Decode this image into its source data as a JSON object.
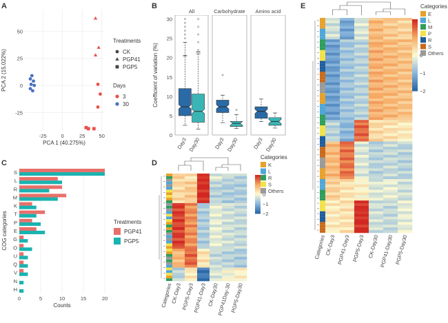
{
  "panels": {
    "A": "A",
    "B": "B",
    "C": "C",
    "D": "D",
    "E": "E"
  },
  "chart_data": [
    {
      "panel": "A",
      "type": "scatter",
      "xlabel": "PCA 1 (40.275%)",
      "ylabel": "PCA 2 (15.022%)",
      "xlim": [
        -48,
        52
      ],
      "ylim": [
        -42,
        70
      ],
      "xticks": [
        -25,
        0,
        25,
        50
      ],
      "yticks": [
        -25,
        0,
        25,
        50
      ],
      "grid": true,
      "legend_treatments_title": "Treatments",
      "legend_days_title": "Days",
      "treatments": [
        "CK",
        "PGP41",
        "PGP5"
      ],
      "days": [
        "3",
        "30"
      ],
      "colors": {
        "3": "#e8524a",
        "30": "#4a6fc0"
      },
      "points": [
        {
          "x": -39,
          "y": 9,
          "day": "30",
          "t": "CK"
        },
        {
          "x": -41,
          "y": 6,
          "day": "30",
          "t": "CK"
        },
        {
          "x": -37,
          "y": 4,
          "day": "30",
          "t": "CK"
        },
        {
          "x": -40,
          "y": 1,
          "day": "30",
          "t": "CK"
        },
        {
          "x": -36,
          "y": 0,
          "day": "30",
          "t": "CK"
        },
        {
          "x": -41,
          "y": -3,
          "day": "30",
          "t": "CK"
        },
        {
          "x": -38,
          "y": -5,
          "day": "30",
          "t": "CK"
        },
        {
          "x": 42,
          "y": 62,
          "day": "3",
          "t": "PGP41"
        },
        {
          "x": 46,
          "y": 35,
          "day": "3",
          "t": "PGP41"
        },
        {
          "x": 42,
          "y": 28,
          "day": "3",
          "t": "PGP41"
        },
        {
          "x": 45,
          "y": 1,
          "day": "3",
          "t": "CK"
        },
        {
          "x": 48,
          "y": -8,
          "day": "3",
          "t": "CK"
        },
        {
          "x": 45,
          "y": -20,
          "day": "3",
          "t": "CK"
        },
        {
          "x": 30,
          "y": -39,
          "day": "3",
          "t": "PGP5"
        },
        {
          "x": 33,
          "y": -40,
          "day": "3",
          "t": "PGP5"
        },
        {
          "x": 40,
          "y": -40,
          "day": "3",
          "t": "PGP5"
        }
      ]
    },
    {
      "panel": "B",
      "type": "box",
      "ylabel": "Coefficient of variation (%)",
      "ylim": [
        0,
        31
      ],
      "yticks": [
        0,
        5,
        10,
        15,
        20,
        25,
        30
      ],
      "facets": [
        "All",
        "Carbohydrate",
        "Amino acid"
      ],
      "categories": [
        "Day3",
        "Day30"
      ],
      "colors": {
        "Day3": "#2a6aa6",
        "Day30": "#3ab5b5"
      },
      "boxes": [
        {
          "facet": "All",
          "cat": "Day3",
          "lw": 2.5,
          "q1": 5,
          "med": 7.3,
          "q3": 12,
          "uw": 24,
          "outliers": [
            25,
            26,
            27,
            28,
            29,
            30
          ],
          "mean": 20.5
        },
        {
          "facet": "All",
          "cat": "Day30",
          "lw": 1.5,
          "q1": 3.3,
          "med": 6.1,
          "q3": 10.6,
          "uw": 21,
          "outliers": [
            22,
            24,
            26,
            28,
            30
          ],
          "mean": 21.5
        },
        {
          "facet": "Carbohydrate",
          "cat": "Day3",
          "lw": 3.2,
          "q1": 5.8,
          "med": 7.3,
          "q3": 9,
          "uw": 10.3,
          "outliers": [
            15.5
          ]
        },
        {
          "facet": "Carbohydrate",
          "cat": "Day30",
          "lw": 1.7,
          "q1": 2.2,
          "med": 3,
          "q3": 3.5,
          "uw": 5.3,
          "outliers": [
            6.5
          ]
        },
        {
          "facet": "Amino acid",
          "cat": "Day3",
          "lw": 3.5,
          "q1": 4.3,
          "med": 6.1,
          "q3": 7.3,
          "uw": 9.3,
          "outliers": []
        },
        {
          "facet": "Amino acid",
          "cat": "Day30",
          "lw": 1.8,
          "q1": 2.5,
          "med": 3.5,
          "q3": 4.5,
          "uw": 5.7,
          "outliers": []
        }
      ]
    },
    {
      "panel": "C",
      "type": "bar",
      "orientation": "horizontal",
      "xlabel": "Counts",
      "ylabel": "COG categories",
      "xlim": [
        0,
        20
      ],
      "xticks": [
        0,
        5,
        10,
        15,
        20
      ],
      "legend_title": "Treatments",
      "categories": [
        "S",
        "L",
        "R",
        "M",
        "K",
        "T",
        "P",
        "E",
        "G",
        "O",
        "U",
        "Q",
        "V",
        "N",
        "H"
      ],
      "series": [
        {
          "name": "PGP41",
          "color": "#e8706a",
          "values": [
            20,
            9,
            10,
            11,
            3,
            6,
            3,
            4,
            1,
            1,
            1,
            1,
            1,
            0,
            0
          ]
        },
        {
          "name": "PGP5",
          "color": "#19b3b0",
          "values": [
            20,
            10,
            7,
            9,
            4,
            4,
            5,
            6,
            2,
            3,
            2,
            2,
            2,
            1,
            1
          ]
        }
      ]
    },
    {
      "panel": "D",
      "type": "heatmap",
      "columns": [
        "Categories",
        "CK-Day3",
        "PGP5-Day3",
        "PGP41-Day3",
        "CK-Day30",
        "PGP41Day-30",
        "PGP5-Day30"
      ],
      "legend_title": "Categories",
      "legend_items": [
        "K",
        "L",
        "R",
        "S",
        "Others"
      ],
      "legend_colors": [
        "#e6a12a",
        "#4fa6d8",
        "#2e9e5b",
        "#f2e24a",
        "#9a9a9a"
      ],
      "scale_ticks": [
        "2",
        "1",
        "0",
        "−1",
        "−2"
      ],
      "rows": 40
    },
    {
      "panel": "E",
      "type": "heatmap",
      "columns": [
        "Categories",
        "CK-Day3",
        "PGP41-Day3",
        "PGP5-Day3",
        "CK-Day30",
        "PGP41-Day30",
        "PGP5-Day30"
      ],
      "legend_title": "Categories",
      "legend_items": [
        "E",
        "L",
        "M",
        "P",
        "R",
        "S",
        "Others"
      ],
      "legend_colors": [
        "#e6a12a",
        "#4fa6d8",
        "#2e9e5b",
        "#f2e24a",
        "#1e5d9e",
        "#c96a1a",
        "#9a9a9a"
      ],
      "scale_ticks": [
        "2",
        "1",
        "0",
        "−1",
        "−2"
      ],
      "rows": 80
    }
  ]
}
